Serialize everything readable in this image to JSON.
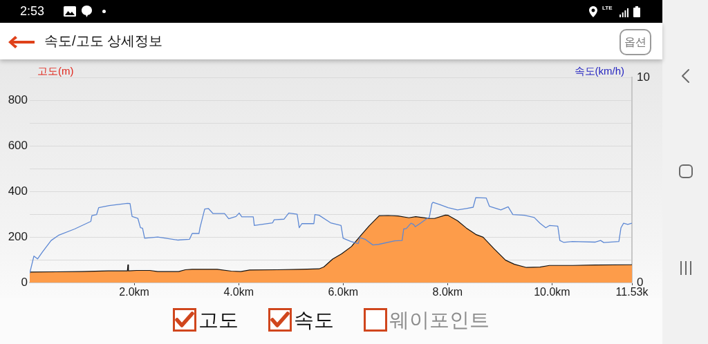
{
  "chart_data": {
    "type": "area",
    "title": "속도/고도 상세정보",
    "ylabel": "고도(m)",
    "y2label": "속도(km/h)",
    "xlim": [
      0,
      11.53
    ],
    "xticks": [
      {
        "value": 2,
        "label": "2.0km"
      },
      {
        "value": 4,
        "label": "4.0km"
      },
      {
        "value": 6,
        "label": "6.0km"
      },
      {
        "value": 8,
        "label": "8.0km"
      },
      {
        "value": 10,
        "label": "10.0km"
      },
      {
        "value": 11.53,
        "label": "11.53k"
      }
    ],
    "ylim": [
      0,
      900
    ],
    "yticks": [
      0,
      {
        "value": 100,
        "label": null
      },
      200,
      {
        "value": 300,
        "label": null
      },
      400,
      {
        "value": 500,
        "label": null
      },
      600,
      {
        "value": 700,
        "label": null
      },
      800,
      {
        "value": 900,
        "label": null
      }
    ],
    "y2lim": [
      0,
      10
    ],
    "y2ticks": [
      0,
      10
    ],
    "grid": "y",
    "annotations": [
      "2:53",
      "LTE",
      "옵션",
      "고도",
      "속도",
      "웨이포인트"
    ],
    "series": [
      {
        "color": "#fd9c4a",
        "x": [
          0,
          0.5,
          1.0,
          1.5,
          1.87,
          1.88,
          1.89,
          2.05,
          2.3,
          2.45,
          2.85,
          2.98,
          3.11,
          3.59,
          3.86,
          4.04,
          4.21,
          4.74,
          5.2,
          5.54,
          5.63,
          5.8,
          5.97,
          6.16,
          6.33,
          6.5,
          6.69,
          6.86,
          7.05,
          7.26,
          7.39,
          7.56,
          7.65,
          7.75,
          7.96,
          8.01,
          8.19,
          8.36,
          8.54,
          8.68,
          8.89,
          9.11,
          9.28,
          9.51,
          9.77,
          9.95,
          10.4,
          10.83,
          11.53
        ],
        "values": [
          46,
          47,
          48,
          51,
          51,
          78,
          51,
          53,
          53,
          48,
          48,
          56,
          58,
          58,
          50,
          48,
          55,
          56,
          58,
          60,
          68,
          103,
          126,
          158,
          204,
          249,
          293,
          294,
          292,
          284,
          289,
          284,
          281,
          281,
          296,
          295,
          271,
          239,
          211,
          199,
          148,
          98,
          80,
          66,
          68,
          75,
          75,
          77,
          78
        ]
      },
      {
        "type": "line",
        "axis": "y2",
        "color": "#5d88d4",
        "x": [
          0,
          0.08,
          0.15,
          0.24,
          0.41,
          0.55,
          0.86,
          1.17,
          1.19,
          1.28,
          1.32,
          1.52,
          1.87,
          1.92,
          1.96,
          2.07,
          2.12,
          2.16,
          2.2,
          2.45,
          2.84,
          3.06,
          3.11,
          3.24,
          3.26,
          3.35,
          3.42,
          3.51,
          3.73,
          3.81,
          3.95,
          4.01,
          4.06,
          4.28,
          4.3,
          4.65,
          4.68,
          4.87,
          4.96,
          5.12,
          5.16,
          5.21,
          5.44,
          5.46,
          5.54,
          5.76,
          5.96,
          6.0,
          6.15,
          6.29,
          6.32,
          6.42,
          6.57,
          6.68,
          6.99,
          7.13,
          7.16,
          7.21,
          7.3,
          7.35,
          7.38,
          7.48,
          7.61,
          7.65,
          7.7,
          7.72,
          7.85,
          8.01,
          8.19,
          8.36,
          8.49,
          8.54,
          8.74,
          8.8,
          9.02,
          9.16,
          9.25,
          9.47,
          9.66,
          9.77,
          9.88,
          9.95,
          10.11,
          10.15,
          10.22,
          10.39,
          10.83,
          10.93,
          10.99,
          11.28,
          11.32,
          11.37,
          11.45,
          11.53
        ],
        "values": [
          0.45,
          1.29,
          1.15,
          1.48,
          2.05,
          2.3,
          2.61,
          2.98,
          3.26,
          3.31,
          3.65,
          3.75,
          3.86,
          3.85,
          3.22,
          3.13,
          2.67,
          2.65,
          2.16,
          2.22,
          2.07,
          2.11,
          2.39,
          2.39,
          2.67,
          3.58,
          3.61,
          3.36,
          3.36,
          3.11,
          3.22,
          3.39,
          3.2,
          3.2,
          2.78,
          2.91,
          3.06,
          3.09,
          3.39,
          3.33,
          2.67,
          2.87,
          2.87,
          3.31,
          3.28,
          2.91,
          2.78,
          2.16,
          2.0,
          1.9,
          2.19,
          2.11,
          1.83,
          1.86,
          2.03,
          2.05,
          2.61,
          2.63,
          2.89,
          2.83,
          2.72,
          2.89,
          3.13,
          3.17,
          3.84,
          3.91,
          3.8,
          3.65,
          3.54,
          3.61,
          3.67,
          4.14,
          4.12,
          3.72,
          3.54,
          3.69,
          3.31,
          3.28,
          3.17,
          2.89,
          2.67,
          2.78,
          2.75,
          2.05,
          1.96,
          2.0,
          1.97,
          2.05,
          1.95,
          2.0,
          2.67,
          2.89,
          2.83,
          2.89
        ]
      }
    ]
  }
}
